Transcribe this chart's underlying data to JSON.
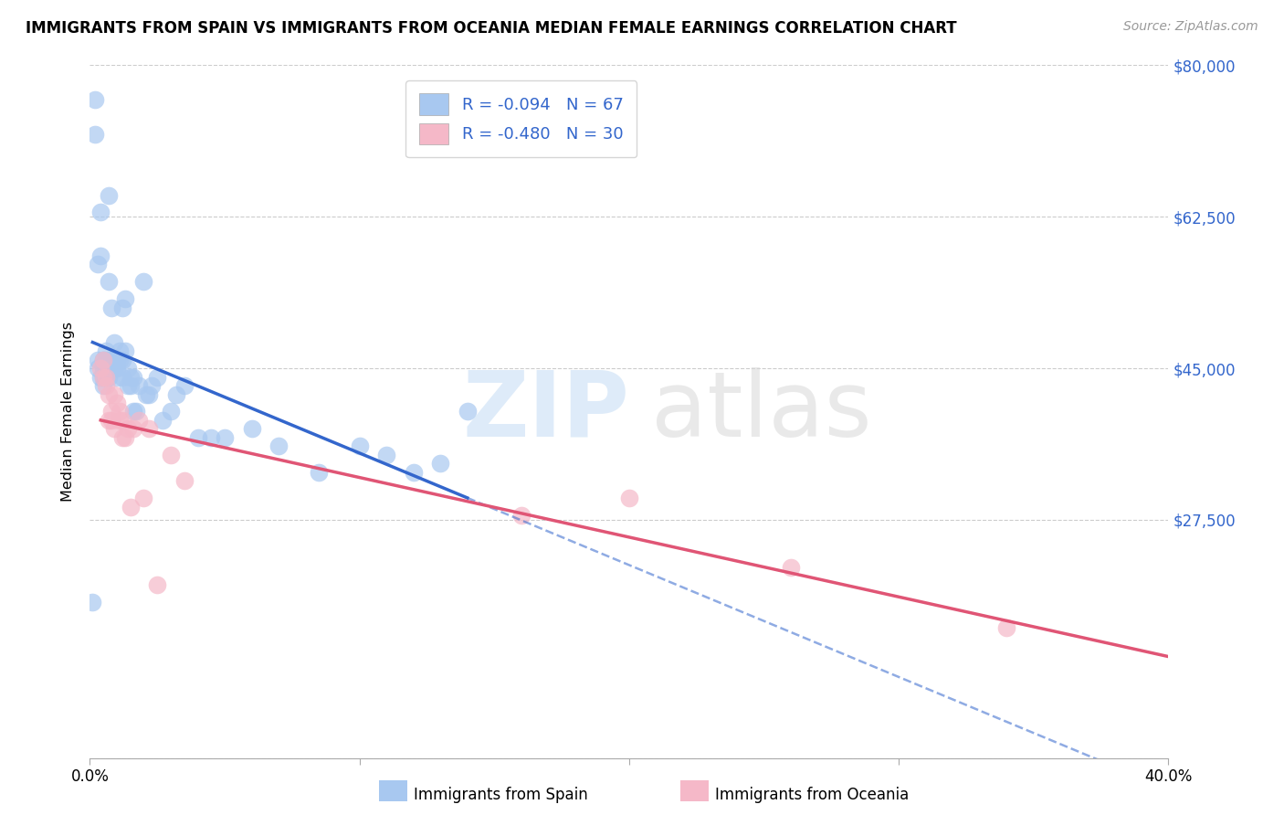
{
  "title": "IMMIGRANTS FROM SPAIN VS IMMIGRANTS FROM OCEANIA MEDIAN FEMALE EARNINGS CORRELATION CHART",
  "source": "Source: ZipAtlas.com",
  "ylabel": "Median Female Earnings",
  "xlim": [
    0.0,
    0.4
  ],
  "ylim": [
    0,
    80000
  ],
  "yticks": [
    0,
    27500,
    45000,
    62500,
    80000
  ],
  "ytick_labels": [
    "",
    "$27,500",
    "$45,000",
    "$62,500",
    "$80,000"
  ],
  "xticks": [
    0.0,
    0.1,
    0.2,
    0.3,
    0.4
  ],
  "xtick_labels": [
    "0.0%",
    "",
    "",
    "",
    "40.0%"
  ],
  "R_spain": -0.094,
  "N_spain": 67,
  "R_oceania": -0.48,
  "N_oceania": 30,
  "spain_color": "#a8c8f0",
  "oceania_color": "#f5b8c8",
  "spain_line_color": "#3366cc",
  "oceania_line_color": "#e05575",
  "spain_line_end": 0.14,
  "background_color": "#ffffff",
  "spain_x": [
    0.001,
    0.002,
    0.002,
    0.003,
    0.003,
    0.003,
    0.004,
    0.004,
    0.004,
    0.005,
    0.005,
    0.005,
    0.005,
    0.005,
    0.006,
    0.006,
    0.006,
    0.006,
    0.007,
    0.007,
    0.007,
    0.007,
    0.007,
    0.008,
    0.008,
    0.008,
    0.009,
    0.009,
    0.009,
    0.01,
    0.01,
    0.01,
    0.011,
    0.011,
    0.012,
    0.012,
    0.012,
    0.013,
    0.013,
    0.014,
    0.014,
    0.015,
    0.015,
    0.016,
    0.016,
    0.017,
    0.018,
    0.02,
    0.021,
    0.022,
    0.023,
    0.025,
    0.027,
    0.03,
    0.032,
    0.035,
    0.04,
    0.045,
    0.05,
    0.06,
    0.07,
    0.085,
    0.1,
    0.11,
    0.12,
    0.13,
    0.14
  ],
  "spain_y": [
    18000,
    72000,
    76000,
    57000,
    46000,
    45000,
    63000,
    58000,
    44000,
    46000,
    46000,
    45000,
    44000,
    43000,
    47000,
    46000,
    45000,
    44000,
    65000,
    55000,
    46000,
    45000,
    44000,
    52000,
    46000,
    45000,
    48000,
    46000,
    45000,
    46000,
    45000,
    44000,
    47000,
    46000,
    52000,
    46000,
    44000,
    53000,
    47000,
    45000,
    43000,
    44000,
    43000,
    44000,
    40000,
    40000,
    43000,
    55000,
    42000,
    42000,
    43000,
    44000,
    39000,
    40000,
    42000,
    43000,
    37000,
    37000,
    37000,
    38000,
    36000,
    33000,
    36000,
    35000,
    33000,
    34000,
    40000
  ],
  "oceania_x": [
    0.004,
    0.005,
    0.005,
    0.006,
    0.006,
    0.007,
    0.007,
    0.008,
    0.008,
    0.009,
    0.009,
    0.01,
    0.011,
    0.011,
    0.012,
    0.012,
    0.013,
    0.014,
    0.015,
    0.016,
    0.018,
    0.02,
    0.022,
    0.025,
    0.03,
    0.035,
    0.16,
    0.2,
    0.26,
    0.34
  ],
  "oceania_y": [
    45000,
    46000,
    44000,
    44000,
    43000,
    42000,
    39000,
    40000,
    39000,
    42000,
    38000,
    41000,
    40000,
    39000,
    39000,
    37000,
    37000,
    38000,
    29000,
    38000,
    39000,
    30000,
    38000,
    20000,
    35000,
    32000,
    28000,
    30000,
    22000,
    15000
  ]
}
